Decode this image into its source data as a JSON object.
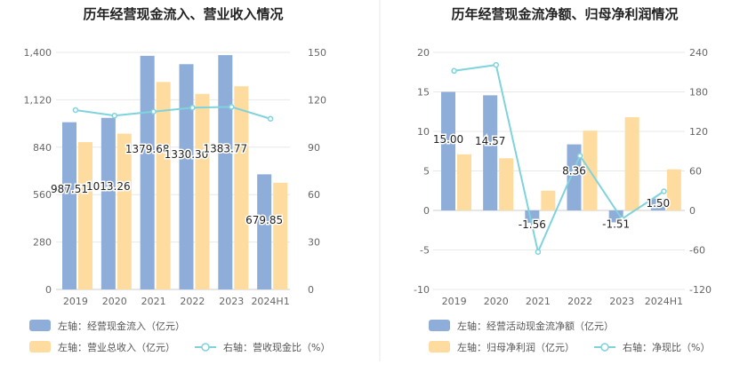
{
  "colors": {
    "bar_primary": "#8eadd9",
    "bar_secondary": "#fedc9f",
    "line": "#7fd3dc",
    "grid": "#e8e8e8",
    "axis": "#cccccc",
    "divider": "#e8e8e8"
  },
  "chart_data": [
    {
      "type": "bar",
      "title": "历年经营现金流入、营业收入情况",
      "categories": [
        "2019",
        "2020",
        "2021",
        "2022",
        "2023",
        "2024H1"
      ],
      "yticks_left": [
        "0",
        "280",
        "560",
        "840",
        "1,120",
        "1,400"
      ],
      "yticks_right": [
        "0",
        "30",
        "60",
        "90",
        "120",
        "150"
      ],
      "ylim_left": [
        0,
        1400
      ],
      "ylim_right": [
        0,
        150
      ],
      "grid": true,
      "legend_position": "bottom-left",
      "series": [
        {
          "name": "左轴：经营现金流入（亿元）",
          "axis": "left",
          "kind": "bar",
          "values": [
            987.51,
            1013.26,
            1379.68,
            1330.3,
            1383.77,
            679.85
          ],
          "labels": [
            "987.51",
            "1013.26",
            "1379.68",
            "1330.30",
            "1383.77",
            "679.85"
          ]
        },
        {
          "name": "左轴：营业总收入（亿元）",
          "axis": "left",
          "kind": "bar",
          "values": [
            870,
            920,
            1225,
            1155,
            1200,
            630
          ]
        },
        {
          "name": "右轴：营收现金比（%）",
          "axis": "right",
          "kind": "line",
          "values": [
            113.5,
            110,
            112.5,
            115,
            115.5,
            108
          ]
        }
      ]
    },
    {
      "type": "bar",
      "title": "历年经营现金流净额、归母净利润情况",
      "categories": [
        "2019",
        "2020",
        "2021",
        "2022",
        "2023",
        "2024H1"
      ],
      "yticks_left": [
        "-10",
        "-5",
        "0",
        "5",
        "10",
        "15",
        "20"
      ],
      "yticks_right": [
        "-120",
        "-60",
        "0",
        "60",
        "120",
        "180",
        "240"
      ],
      "ylim_left": [
        -10,
        20
      ],
      "ylim_right": [
        -120,
        240
      ],
      "grid": true,
      "legend_position": "bottom-left",
      "series": [
        {
          "name": "左轴：经营活动现金流净额（亿元）",
          "axis": "left",
          "kind": "bar",
          "values": [
            15.0,
            14.57,
            -1.56,
            8.36,
            -1.51,
            1.5
          ],
          "labels": [
            "15.00",
            "14.57",
            "-1.56",
            "8.36",
            "-1.51",
            "1.50"
          ]
        },
        {
          "name": "左轴：归母净利润（亿元）",
          "axis": "left",
          "kind": "bar",
          "values": [
            7.1,
            6.6,
            2.5,
            10.1,
            11.8,
            5.2
          ]
        },
        {
          "name": "右轴：净现比（%）",
          "axis": "right",
          "kind": "line",
          "values": [
            212,
            221,
            -63,
            83,
            -13,
            29
          ]
        }
      ]
    }
  ]
}
